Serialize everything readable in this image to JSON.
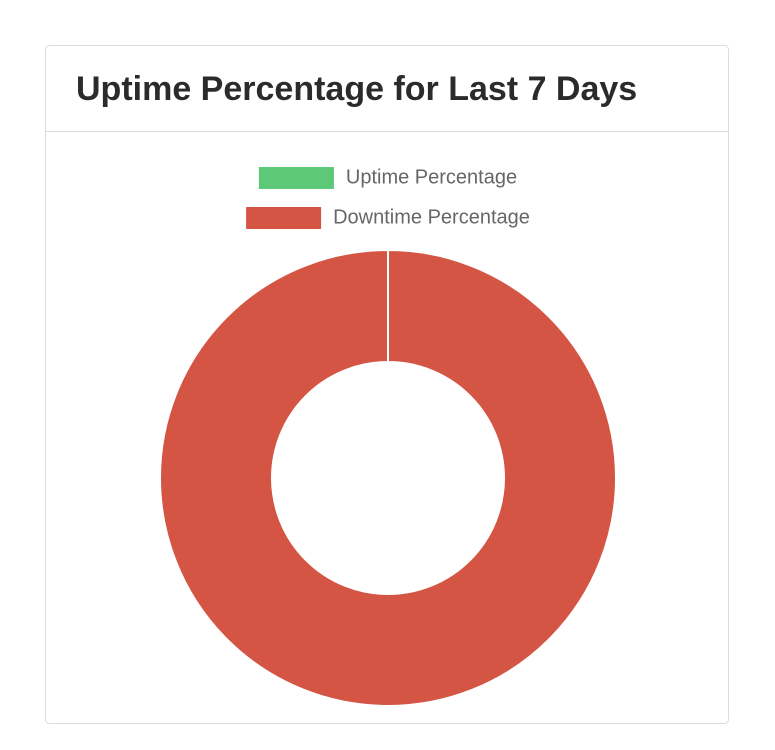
{
  "chart_data": {
    "type": "doughnut",
    "title": "Uptime Percentage for Last 7 Days",
    "categories": [
      "Uptime Percentage",
      "Downtime Percentage"
    ],
    "values": [
      0,
      100
    ],
    "colors": [
      "#5dc978",
      "#d45544"
    ]
  }
}
